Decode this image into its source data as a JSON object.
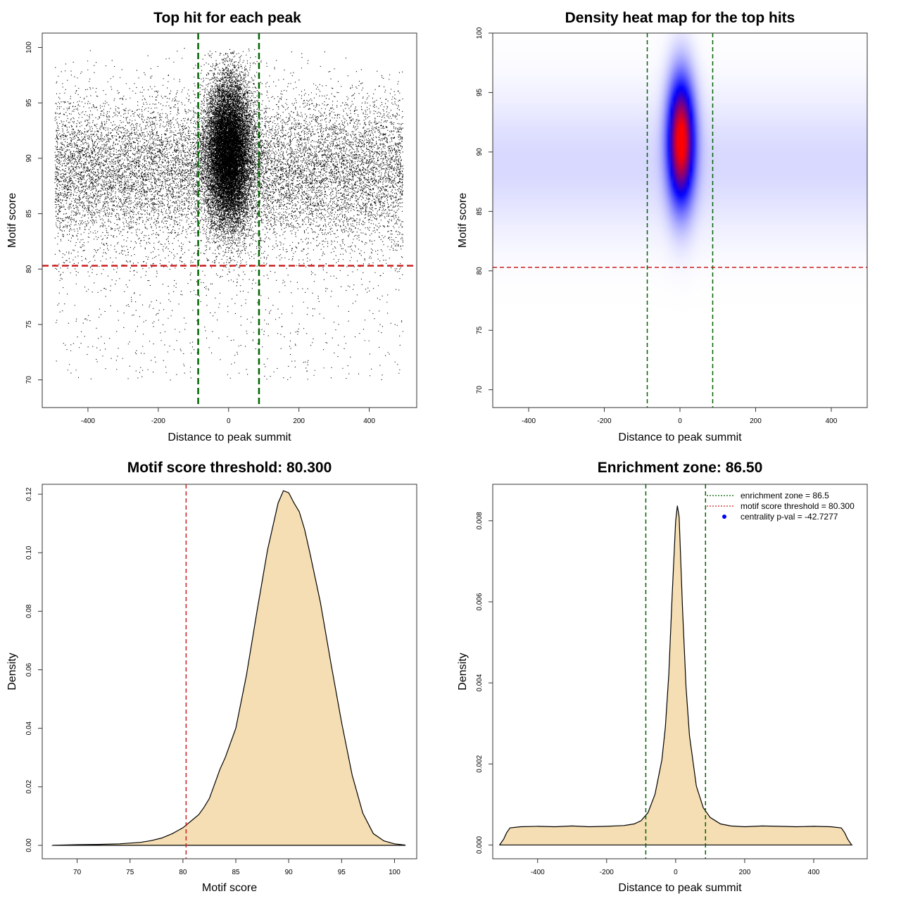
{
  "colors": {
    "green_line": "#006400",
    "red_line": "#cc2020",
    "density_fill": "#f5deb3",
    "points": "#000000",
    "heat_low": "#ffffff",
    "heat_mid": "#0000ff",
    "heat_high": "#ff0000",
    "legend_dot": "#0000ff"
  },
  "chart_data": [
    {
      "type": "scatter",
      "title": "Top hit for each peak",
      "xlabel": "Distance to peak summit",
      "ylabel": "Motif score",
      "xlim": [
        -530,
        535
      ],
      "ylim": [
        67.5,
        101.3
      ],
      "xticks": [
        "-400",
        "-200",
        "0",
        "200",
        "400"
      ],
      "xtick_values": [
        -400,
        -200,
        0,
        200,
        400
      ],
      "yticks": [
        "70",
        "75",
        "80",
        "85",
        "90",
        "95",
        "100"
      ],
      "ytick_values": [
        70,
        75,
        80,
        85,
        90,
        95,
        100
      ],
      "vlines": [
        -86.5,
        86.5
      ],
      "hline": 80.3,
      "background_points": 14000,
      "central_points": 16000,
      "x_range": [
        -495,
        495
      ],
      "background_score_mean": 88.8,
      "background_score_sd": 3.5,
      "central_x_sd": 32,
      "central_score_mean": 90.5,
      "central_score_sd": 3.3
    },
    {
      "type": "heatmap",
      "title": "Density heat map for the top hits",
      "xlabel": "Distance to peak summit",
      "ylabel": "Motif score",
      "xlim": [
        -495,
        495
      ],
      "ylim": [
        68.5,
        100
      ],
      "xticks": [
        "-400",
        "-200",
        "0",
        "200",
        "400"
      ],
      "xtick_values": [
        -400,
        -200,
        0,
        200,
        400
      ],
      "yticks": [
        "70",
        "75",
        "80",
        "85",
        "90",
        "95",
        "100"
      ],
      "ytick_values": [
        70,
        75,
        80,
        85,
        90,
        95,
        100
      ],
      "vlines": [
        -86.5,
        86.5
      ],
      "hline": 80.3,
      "peak_center": [
        3,
        91
      ],
      "peak_x_sd": 24,
      "peak_y_sd": 3.6,
      "background_y_center": 89,
      "background_y_sd": 4
    },
    {
      "type": "area",
      "title": "Motif score threshold: 80.300",
      "xlabel": "Motif score",
      "ylabel": "Density",
      "xlim": [
        66.7,
        102.1
      ],
      "ylim": [
        -0.0046,
        0.1234
      ],
      "xticks": [
        "70",
        "75",
        "80",
        "85",
        "90",
        "95",
        "100"
      ],
      "xtick_values": [
        70,
        75,
        80,
        85,
        90,
        95,
        100
      ],
      "yticks": [
        "0.00",
        "0.02",
        "0.04",
        "0.06",
        "0.08",
        "0.10",
        "0.12"
      ],
      "ytick_values": [
        0,
        0.02,
        0.04,
        0.06,
        0.08,
        0.1,
        0.12
      ],
      "vline": 80.3,
      "x": [
        67.7,
        70,
        72,
        74,
        76,
        77,
        78,
        79,
        80,
        80.5,
        81,
        81.5,
        82,
        82.5,
        83,
        83.5,
        84,
        85,
        86,
        87,
        88,
        89,
        89.5,
        90,
        90.5,
        91,
        91.5,
        92,
        93,
        94,
        95,
        96,
        97,
        98,
        99,
        100,
        101
      ],
      "y": [
        0,
        0.0002,
        0.0003,
        0.0005,
        0.001,
        0.0016,
        0.0025,
        0.004,
        0.006,
        0.0075,
        0.009,
        0.0105,
        0.013,
        0.016,
        0.021,
        0.026,
        0.03,
        0.04,
        0.058,
        0.08,
        0.101,
        0.117,
        0.1212,
        0.1205,
        0.117,
        0.114,
        0.108,
        0.1,
        0.083,
        0.062,
        0.042,
        0.024,
        0.011,
        0.004,
        0.0015,
        0.0005,
        0.0001
      ]
    },
    {
      "type": "area",
      "title": "Enrichment zone: 86.50",
      "xlabel": "Distance to peak summit",
      "ylabel": "Density",
      "xlim": [
        -530,
        555
      ],
      "ylim": [
        -0.00034,
        0.0089
      ],
      "xticks": [
        "-400",
        "-200",
        "0",
        "200",
        "400"
      ],
      "xtick_values": [
        -400,
        -200,
        0,
        200,
        400
      ],
      "yticks": [
        "0.000",
        "0.002",
        "0.004",
        "0.006",
        "0.008"
      ],
      "ytick_values": [
        0,
        0.002,
        0.004,
        0.006,
        0.008
      ],
      "vlines": [
        -86.5,
        86.5
      ],
      "x": [
        -510,
        -498,
        -490,
        -480,
        -450,
        -400,
        -350,
        -300,
        -250,
        -200,
        -150,
        -120,
        -100,
        -80,
        -60,
        -40,
        -30,
        -20,
        -10,
        0,
        5,
        10,
        20,
        30,
        40,
        60,
        80,
        100,
        130,
        160,
        200,
        250,
        300,
        350,
        400,
        450,
        480,
        490,
        498,
        510
      ],
      "y": [
        0,
        0.00015,
        0.0003,
        0.00042,
        0.00045,
        0.00046,
        0.00045,
        0.00047,
        0.00045,
        0.00046,
        0.00048,
        0.00052,
        0.0006,
        0.0008,
        0.00125,
        0.0021,
        0.0029,
        0.0042,
        0.0062,
        0.008,
        0.00837,
        0.0081,
        0.0058,
        0.0039,
        0.0027,
        0.00145,
        0.00092,
        0.00068,
        0.00052,
        0.00047,
        0.00045,
        0.00047,
        0.00046,
        0.00045,
        0.00046,
        0.00045,
        0.00042,
        0.0003,
        0.00015,
        0
      ],
      "legend": [
        {
          "label": "enrichment zone = 86.5",
          "style": "dotted",
          "color": "#006400"
        },
        {
          "label": "motif score threshold = 80.300",
          "style": "dotted",
          "color": "#cc2020"
        },
        {
          "label": "centrality p-val = -42.7277",
          "style": "dot",
          "color": "#0000ff"
        }
      ],
      "legend_position": "top-right"
    }
  ]
}
